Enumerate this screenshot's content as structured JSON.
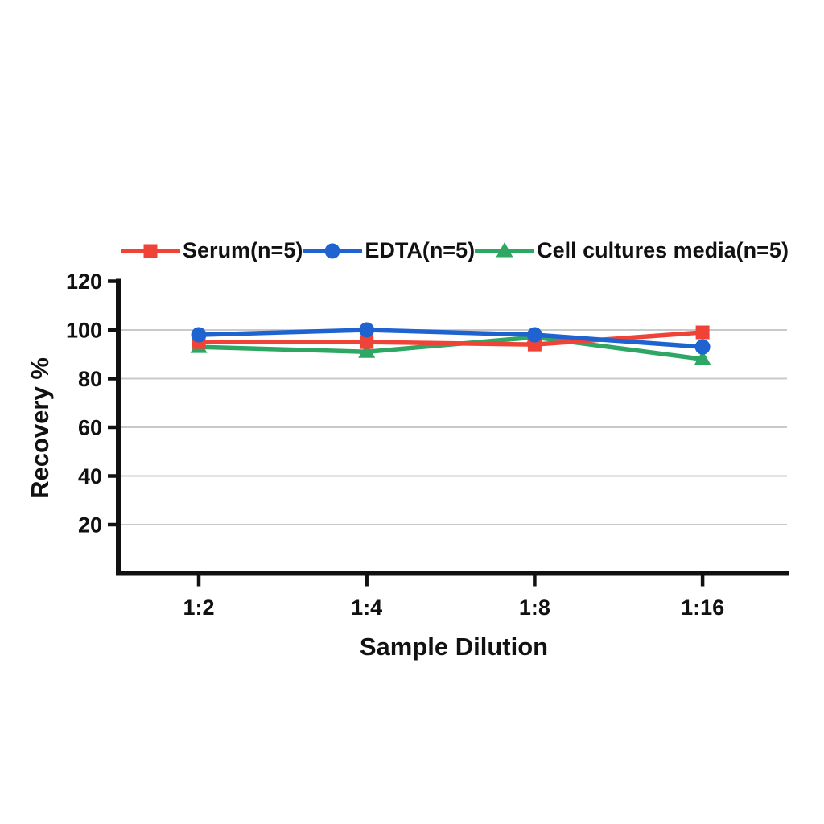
{
  "chart_data": {
    "type": "line",
    "title": "",
    "xlabel": "Sample Dilution",
    "ylabel": "Recovery %",
    "categories": [
      "1:2",
      "1:4",
      "1:8",
      "1:16"
    ],
    "ylim": [
      0,
      120
    ],
    "yticks": [
      20,
      40,
      60,
      80,
      100,
      120
    ],
    "gridlines": [
      20,
      40,
      60,
      80,
      100
    ],
    "grid_color": "#c9c9c9",
    "axis_color": "#111111",
    "legend_position": "top",
    "series": [
      {
        "name": "Serum(n=5)",
        "color": "#f04338",
        "marker": "square",
        "values": [
          95,
          95,
          94,
          99
        ]
      },
      {
        "name": "EDTA(n=5)",
        "color": "#1e63d0",
        "marker": "circle",
        "values": [
          98,
          100,
          98,
          93
        ]
      },
      {
        "name": "Cell cultures media(n=5)",
        "color": "#2ea664",
        "marker": "triangle",
        "values": [
          93,
          91,
          97,
          88
        ]
      }
    ]
  }
}
